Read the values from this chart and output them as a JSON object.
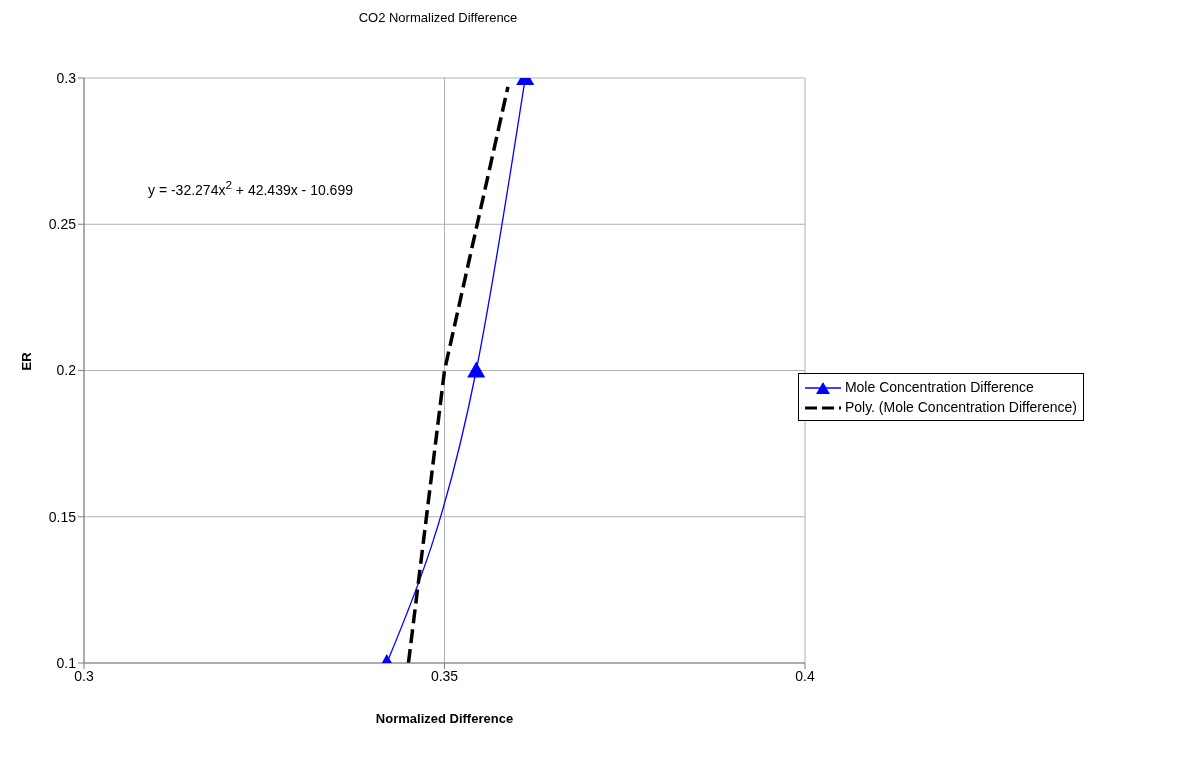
{
  "chart_data": {
    "type": "line",
    "title": "CO2 Normalized Difference",
    "xlabel": "Normalized Difference",
    "ylabel": "ER",
    "annotations": [
      "y = -32.274x$^{2}$ + 42.439x - 10.699"
    ],
    "xlim": [
      0.3,
      0.4
    ],
    "xticks": [
      0.3,
      0.35,
      0.4
    ],
    "ylim": [
      0.1,
      0.3
    ],
    "yticks": [
      0.1,
      0.15,
      0.2,
      0.25,
      0.3
    ],
    "grid": true,
    "legend": "right",
    "series": [
      {
        "name": "Mole Concentration Difference",
        "color": "#0000ff",
        "x": [
          0.342,
          0.3544,
          0.3612
        ],
        "values": [
          0.1,
          0.2,
          0.3
        ],
        "marker": "triangle",
        "line_style": "solid"
      },
      {
        "name": "Poly. (Mole Concentration Difference)",
        "type": "line",
        "color": "#000000",
        "x": [
          0.345,
          0.35,
          0.3588
        ],
        "values": [
          0.1,
          0.2,
          0.297
        ],
        "marker": "none",
        "line_style": "dashed"
      }
    ]
  }
}
